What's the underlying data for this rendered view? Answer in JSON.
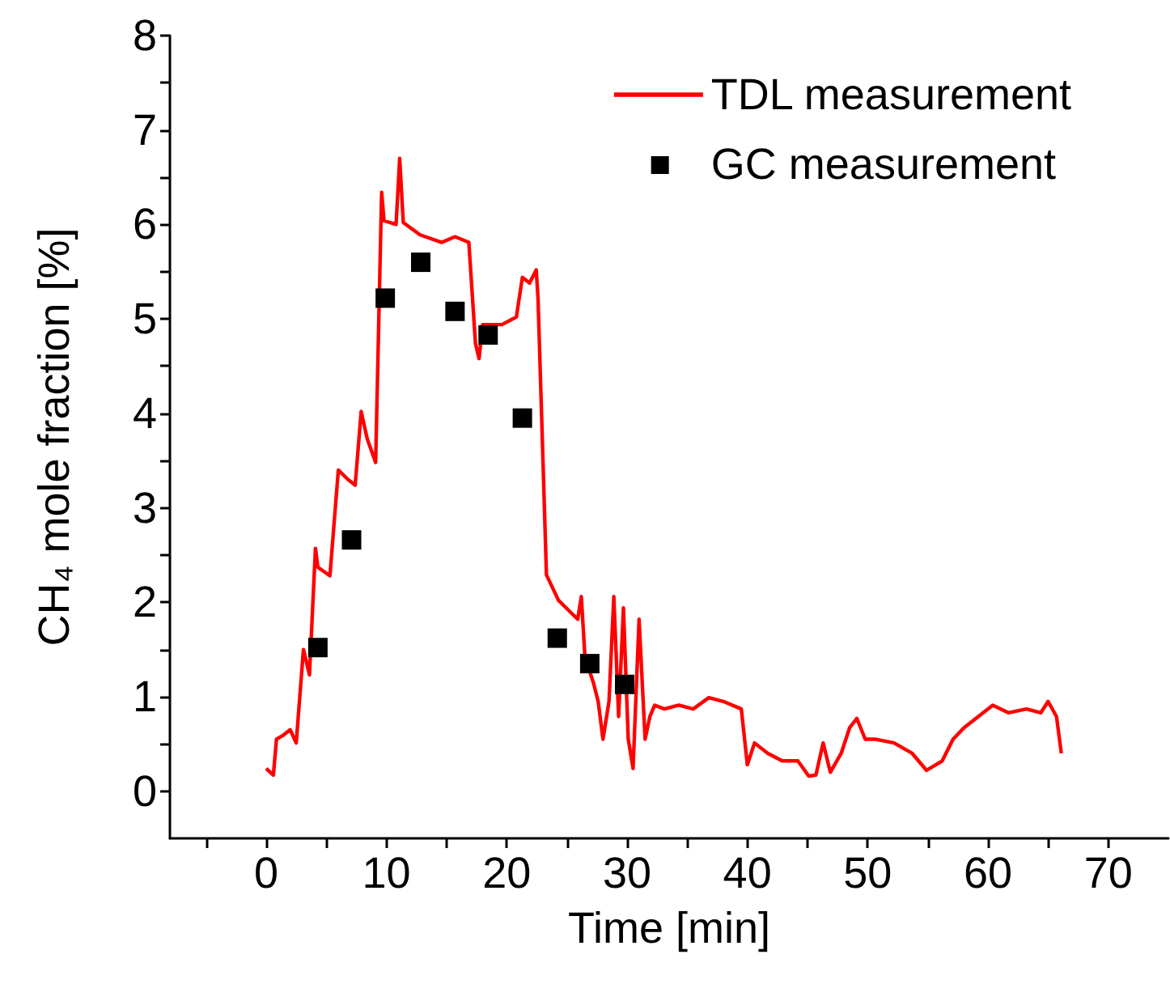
{
  "chart_data": {
    "type": "line",
    "xlabel": "Time [min]",
    "ylabel": "CH₄ mole fraction [%]",
    "xlim": [
      -8,
      75
    ],
    "ylim": [
      -0.5,
      8
    ],
    "xticks": [
      {
        "value": -5,
        "label": null
      },
      0,
      {
        "value": 5,
        "label": null
      },
      10,
      {
        "value": 15,
        "label": null
      },
      20,
      {
        "value": 25,
        "label": null
      },
      30,
      {
        "value": 35,
        "label": null
      },
      40,
      {
        "value": 45,
        "label": null
      },
      50,
      {
        "value": 55,
        "label": null
      },
      60,
      {
        "value": 65,
        "label": null
      },
      70
    ],
    "yticks": [
      0,
      {
        "value": 0.5,
        "label": null
      },
      1,
      {
        "value": 1.5,
        "label": null
      },
      2,
      {
        "value": 2.5,
        "label": null
      },
      3,
      {
        "value": 3.5,
        "label": null
      },
      4,
      {
        "value": 4.5,
        "label": null
      },
      5,
      {
        "value": 5.5,
        "label": null
      },
      6,
      {
        "value": 6.5,
        "label": null
      },
      7,
      {
        "value": 7.5,
        "label": null
      },
      8
    ],
    "grid": false,
    "legend": "top right",
    "series": [
      {
        "name": "TDL measurement",
        "color": "#ff0000",
        "marker": "none",
        "line_style": "solid",
        "x": [
          0,
          0.6,
          0.86,
          1.4,
          2.0,
          2.5,
          3.1,
          3.6,
          4.1,
          4.3,
          5.3,
          6.0,
          6.8,
          7.4,
          7.9,
          8.4,
          9.1,
          9.6,
          9.8,
          10.8,
          11.1,
          11.4,
          12.8,
          14.6,
          15.7,
          16.85,
          17.4,
          17.7,
          18.0,
          19.6,
          20.8,
          21.3,
          21.9,
          22.45,
          22.6,
          23.3,
          24.3,
          25.9,
          26.2,
          26.5,
          27.2,
          27.6,
          28.0,
          28.5,
          28.9,
          29.3,
          29.7,
          30.1,
          30.5,
          31.0,
          31.5,
          31.9,
          32.3,
          33.1,
          34.3,
          35.5,
          36.8,
          38.0,
          39.5,
          40.0,
          40.6,
          41.7,
          42.9,
          44.2,
          45.1,
          45.7,
          46.3,
          46.9,
          47.8,
          48.5,
          49.1,
          49.8,
          50.6,
          52.2,
          53.7,
          54.9,
          56.2,
          57.1,
          58.0,
          59.2,
          60.4,
          61.7,
          63.2,
          64.4,
          65.0,
          65.7,
          66.1
        ],
        "values": [
          0.24,
          0.17,
          0.55,
          0.59,
          0.65,
          0.51,
          1.5,
          1.23,
          2.57,
          2.37,
          2.28,
          3.4,
          3.3,
          3.24,
          4.02,
          3.73,
          3.48,
          6.34,
          6.04,
          6.0,
          6.7,
          6.02,
          5.89,
          5.81,
          5.87,
          5.81,
          4.74,
          4.58,
          4.94,
          4.94,
          5.02,
          5.44,
          5.38,
          5.52,
          5.22,
          2.29,
          2.02,
          1.82,
          2.06,
          1.42,
          1.15,
          0.95,
          0.55,
          0.95,
          2.06,
          0.79,
          1.94,
          0.55,
          0.24,
          1.82,
          0.55,
          0.79,
          0.91,
          0.87,
          0.91,
          0.87,
          0.99,
          0.95,
          0.87,
          0.28,
          0.51,
          0.4,
          0.32,
          0.32,
          0.16,
          0.17,
          0.51,
          0.2,
          0.4,
          0.67,
          0.77,
          0.55,
          0.55,
          0.51,
          0.4,
          0.22,
          0.32,
          0.55,
          0.67,
          0.79,
          0.91,
          0.83,
          0.87,
          0.83,
          0.95,
          0.79,
          0.4
        ]
      },
      {
        "name": "GC measurement",
        "type": "scatter",
        "color": "#000000",
        "marker": "square",
        "x": [
          4.3,
          7.1,
          9.9,
          12.85,
          15.7,
          18.45,
          21.3,
          24.2,
          26.9,
          29.8
        ],
        "values": [
          1.52,
          2.66,
          5.22,
          5.6,
          5.08,
          4.83,
          3.95,
          1.62,
          1.35,
          1.13
        ]
      }
    ]
  }
}
